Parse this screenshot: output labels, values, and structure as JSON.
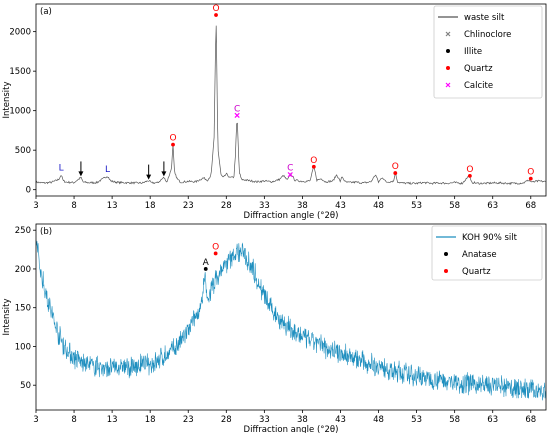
{
  "chart_data": [
    {
      "type": "line",
      "panel_label": "(a)",
      "xlabel": "Diffraction angle (°2θ)",
      "ylabel": "Intensity",
      "xlim": [
        3,
        70
      ],
      "ylim": [
        -80,
        2350
      ],
      "xticks": [
        3,
        8,
        13,
        18,
        23,
        28,
        33,
        38,
        43,
        48,
        53,
        58,
        63,
        68
      ],
      "yticks": [
        0,
        500,
        1000,
        1500,
        2000
      ],
      "grid": false,
      "legend_position": "top-right",
      "series": [
        {
          "name": "waste silt",
          "color": "#555555",
          "points": [
            [
              3,
              95
            ],
            [
              4,
              85
            ],
            [
              5,
              92
            ],
            [
              6,
              130
            ],
            [
              6.3,
              190
            ],
            [
              6.6,
              110
            ],
            [
              7,
              95
            ],
            [
              8,
              90
            ],
            [
              8.9,
              155
            ],
            [
              9.2,
              95
            ],
            [
              10,
              88
            ],
            [
              11,
              90
            ],
            [
              12,
              150
            ],
            [
              12.4,
              175
            ],
            [
              12.8,
              110
            ],
            [
              13.5,
              95
            ],
            [
              14,
              90
            ],
            [
              15,
              88
            ],
            [
              16,
              85
            ],
            [
              17,
              85
            ],
            [
              17.8,
              115
            ],
            [
              18.2,
              85
            ],
            [
              19,
              88
            ],
            [
              19.8,
              155
            ],
            [
              20.2,
              95
            ],
            [
              20.8,
              270
            ],
            [
              21,
              560
            ],
            [
              21.2,
              210
            ],
            [
              21.6,
              130
            ],
            [
              22,
              95
            ],
            [
              23,
              105
            ],
            [
              24,
              100
            ],
            [
              25,
              150
            ],
            [
              25.5,
              120
            ],
            [
              26,
              180
            ],
            [
              26.4,
              650
            ],
            [
              26.65,
              2210
            ],
            [
              26.9,
              520
            ],
            [
              27.3,
              190
            ],
            [
              27.6,
              150
            ],
            [
              28,
              200
            ],
            [
              28.5,
              150
            ],
            [
              29,
              160
            ],
            [
              29.2,
              450
            ],
            [
              29.42,
              940
            ],
            [
              29.7,
              220
            ],
            [
              30,
              130
            ],
            [
              31,
              115
            ],
            [
              32,
              100
            ],
            [
              33,
              110
            ],
            [
              34,
              100
            ],
            [
              35,
              130
            ],
            [
              35.5,
              180
            ],
            [
              36,
              120
            ],
            [
              36.5,
              200
            ],
            [
              37,
              120
            ],
            [
              38,
              105
            ],
            [
              39,
              110
            ],
            [
              39.5,
              300
            ],
            [
              39.9,
              120
            ],
            [
              40.5,
              140
            ],
            [
              41,
              100
            ],
            [
              42,
              110
            ],
            [
              42.5,
              190
            ],
            [
              43,
              100
            ],
            [
              43.2,
              170
            ],
            [
              43.6,
              100
            ],
            [
              44,
              90
            ],
            [
              45,
              95
            ],
            [
              46,
              85
            ],
            [
              47,
              100
            ],
            [
              47.6,
              190
            ],
            [
              48,
              95
            ],
            [
              48.5,
              160
            ],
            [
              49,
              95
            ],
            [
              50,
              110
            ],
            [
              50.2,
              220
            ],
            [
              50.5,
              100
            ],
            [
              51,
              85
            ],
            [
              52,
              80
            ],
            [
              53,
              80
            ],
            [
              54,
              90
            ],
            [
              55,
              80
            ],
            [
              56,
              85
            ],
            [
              57,
              80
            ],
            [
              58,
              90
            ],
            [
              59,
              80
            ],
            [
              59.9,
              180
            ],
            [
              60.2,
              95
            ],
            [
              61,
              80
            ],
            [
              62,
              80
            ],
            [
              63,
              85
            ],
            [
              64,
              85
            ],
            [
              65,
              80
            ],
            [
              66,
              80
            ],
            [
              67,
              85
            ],
            [
              67.7,
              120
            ],
            [
              68.2,
              95
            ],
            [
              69,
              110
            ],
            [
              70,
              100
            ]
          ]
        },
        {
          "name": "Chlinoclore",
          "marker": "x",
          "marker_color": "#808080",
          "points": []
        },
        {
          "name": "Illite",
          "marker": "dot",
          "marker_color": "#000000",
          "points": []
        },
        {
          "name": "Quartz",
          "marker": "dot",
          "marker_color": "#ff0000",
          "points": [
            [
              21,
              570
            ],
            [
              26.65,
              2210
            ],
            [
              39.5,
              290
            ],
            [
              50.2,
              210
            ],
            [
              60,
              175
            ],
            [
              68,
              140
            ]
          ]
        },
        {
          "name": "Calcite",
          "marker": "x",
          "marker_color": "#ff00ff",
          "points": [
            [
              29.42,
              940
            ],
            [
              36.4,
              190
            ]
          ]
        }
      ],
      "annotations": [
        {
          "text": "O",
          "x": 26.65,
          "y": 2210,
          "color": "#ff0000"
        },
        {
          "text": "O",
          "x": 21,
          "y": 570,
          "color": "#ff0000"
        },
        {
          "text": "O",
          "x": 39.5,
          "y": 290,
          "color": "#ff0000"
        },
        {
          "text": "O",
          "x": 50.2,
          "y": 210,
          "color": "#ff0000"
        },
        {
          "text": "O",
          "x": 60,
          "y": 175,
          "color": "#ff0000"
        },
        {
          "text": "O",
          "x": 68,
          "y": 140,
          "color": "#ff0000"
        },
        {
          "text": "C",
          "x": 29.42,
          "y": 940,
          "color": "#cc00cc"
        },
        {
          "text": "C",
          "x": 36.4,
          "y": 190,
          "color": "#cc00cc"
        },
        {
          "text": "L",
          "x": 6.3,
          "y": 190,
          "color": "#1c1cc8"
        },
        {
          "text": "L",
          "x": 12.4,
          "y": 175,
          "color": "#1c1cc8"
        }
      ],
      "arrows": [
        {
          "x": 8.9,
          "y": 155
        },
        {
          "x": 17.8,
          "y": 115
        },
        {
          "x": 19.8,
          "y": 155
        }
      ]
    },
    {
      "type": "line",
      "panel_label": "(b)",
      "xlabel": "Diffraction angle (°2θ)",
      "ylabel": "Intensity",
      "xlim": [
        3,
        70
      ],
      "ylim": [
        18,
        258
      ],
      "xticks": [
        3,
        8,
        13,
        18,
        23,
        28,
        33,
        38,
        43,
        48,
        53,
        58,
        63,
        68
      ],
      "yticks": [
        50,
        100,
        150,
        200,
        250
      ],
      "grid": false,
      "legend_position": "top-right",
      "series": [
        {
          "name": "KOH 90% silt",
          "color": "#1f8fbf",
          "points": [
            [
              3,
              240
            ],
            [
              3.5,
              205
            ],
            [
              4,
              180
            ],
            [
              5,
              145
            ],
            [
              6,
              115
            ],
            [
              7,
              95
            ],
            [
              8,
              85
            ],
            [
              9,
              80
            ],
            [
              10,
              76
            ],
            [
              11,
              74
            ],
            [
              12,
              72
            ],
            [
              13,
              72
            ],
            [
              14,
              73
            ],
            [
              15,
              73
            ],
            [
              16,
              74
            ],
            [
              17,
              76
            ],
            [
              18,
              78
            ],
            [
              19,
              82
            ],
            [
              20,
              88
            ],
            [
              21,
              96
            ],
            [
              22,
              106
            ],
            [
              23,
              120
            ],
            [
              24,
              138
            ],
            [
              24.8,
              155
            ],
            [
              25.2,
              190
            ],
            [
              25.5,
              160
            ],
            [
              26,
              172
            ],
            [
              26.5,
              185
            ],
            [
              27,
              192
            ],
            [
              27.5,
              200
            ],
            [
              28,
              206
            ],
            [
              28.5,
              212
            ],
            [
              29,
              218
            ],
            [
              29.5,
              222
            ],
            [
              30,
              222
            ],
            [
              30.5,
              218
            ],
            [
              31,
              210
            ],
            [
              31.5,
              200
            ],
            [
              32,
              188
            ],
            [
              32.5,
              176
            ],
            [
              33,
              164
            ],
            [
              34,
              148
            ],
            [
              35,
              136
            ],
            [
              36,
              126
            ],
            [
              37,
              118
            ],
            [
              38,
              112
            ],
            [
              40,
              103
            ],
            [
              42,
              96
            ],
            [
              44,
              88
            ],
            [
              46,
              80
            ],
            [
              48,
              74
            ],
            [
              50,
              68
            ],
            [
              52,
              64
            ],
            [
              54,
              60
            ],
            [
              56,
              57
            ],
            [
              58,
              54
            ],
            [
              60,
              52
            ],
            [
              62,
              50
            ],
            [
              64,
              48
            ],
            [
              66,
              46
            ],
            [
              68,
              44
            ],
            [
              70,
              42
            ]
          ]
        },
        {
          "name": "Anatase",
          "marker": "dot",
          "marker_color": "#000000",
          "points": [
            [
              25.3,
              200
            ]
          ]
        },
        {
          "name": "Quartz",
          "marker": "dot",
          "marker_color": "#ff0000",
          "points": [
            [
              26.6,
              220
            ]
          ]
        }
      ],
      "annotations": [
        {
          "text": "A",
          "x": 25.3,
          "y": 200,
          "color": "#000000"
        },
        {
          "text": "O",
          "x": 26.6,
          "y": 220,
          "color": "#ff0000"
        }
      ]
    }
  ]
}
